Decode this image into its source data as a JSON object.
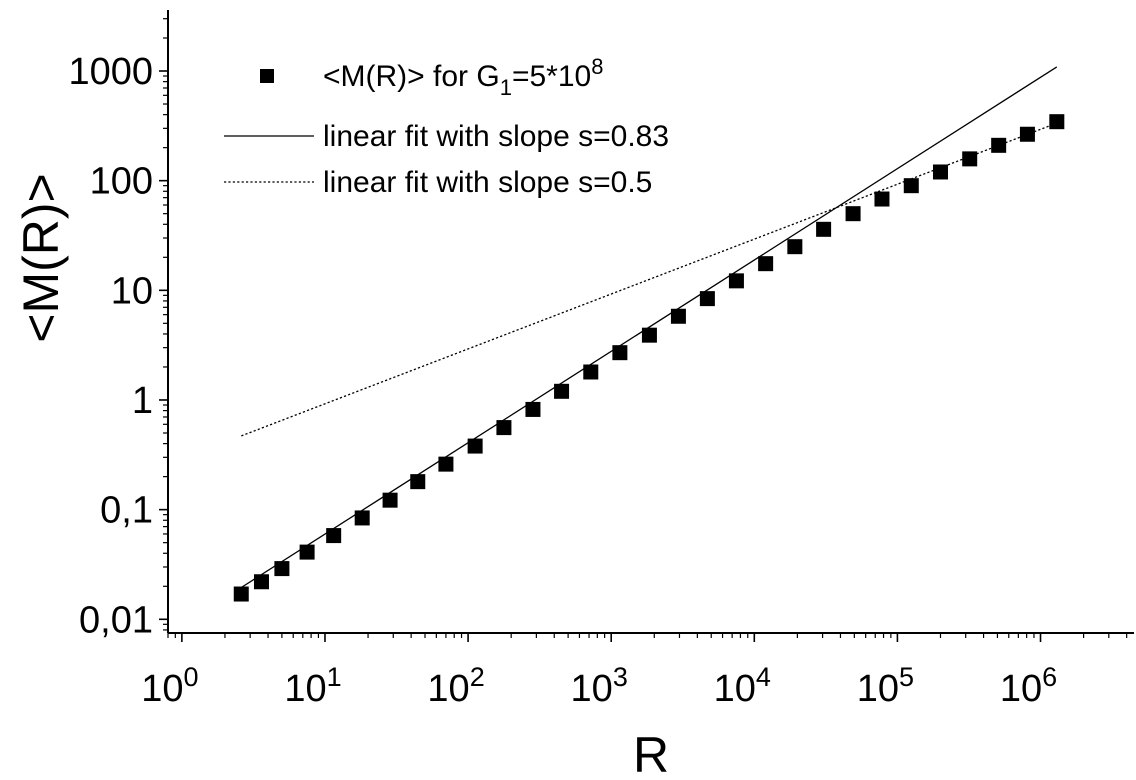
{
  "chart_data": {
    "type": "scatter",
    "title": "",
    "xlabel": "R",
    "ylabel": "<M(R)>",
    "xscale": "log",
    "yscale": "log",
    "xlim": [
      0.8,
      4500000
    ],
    "ylim": [
      0.0075,
      3600
    ],
    "x_ticks": [
      {
        "value": 1,
        "base": "10",
        "exp": "0"
      },
      {
        "value": 10,
        "base": "10",
        "exp": "1"
      },
      {
        "value": 100,
        "base": "10",
        "exp": "2"
      },
      {
        "value": 1000,
        "base": "10",
        "exp": "3"
      },
      {
        "value": 10000,
        "base": "10",
        "exp": "4"
      },
      {
        "value": 100000,
        "base": "10",
        "exp": "5"
      },
      {
        "value": 1000000,
        "base": "10",
        "exp": "6"
      }
    ],
    "y_ticks": [
      {
        "value": 0.01,
        "label": "0,01"
      },
      {
        "value": 0.1,
        "label": "0,1"
      },
      {
        "value": 1,
        "label": "1"
      },
      {
        "value": 10,
        "label": "10"
      },
      {
        "value": 100,
        "label": "100"
      },
      {
        "value": 1000,
        "label": "1000"
      }
    ],
    "grid": false,
    "legend_position": "top-left",
    "series": [
      {
        "name": "<M(R)> for G1=5*10^8",
        "legend": {
          "main": "<M(R)> for G",
          "sub": "1",
          "mid": "=5*10",
          "sup": "8"
        },
        "kind": "markers",
        "x": [
          2.6,
          3.6,
          5.0,
          7.5,
          11.5,
          18.2,
          28.5,
          44.5,
          70,
          112,
          178,
          284,
          450,
          720,
          1150,
          1850,
          2950,
          4700,
          7500,
          12000,
          19200,
          30500,
          49000,
          78000,
          125000,
          200000,
          320000,
          510000,
          810000,
          1300000
        ],
        "y": [
          0.017,
          0.022,
          0.029,
          0.041,
          0.058,
          0.084,
          0.122,
          0.18,
          0.26,
          0.38,
          0.56,
          0.82,
          1.2,
          1.8,
          2.7,
          3.9,
          5.8,
          8.4,
          12.2,
          17.5,
          25,
          36,
          50,
          68,
          90,
          120,
          158,
          210,
          265,
          345
        ]
      },
      {
        "name": "linear fit with slope s=0.83",
        "kind": "line",
        "style": "solid",
        "x": [
          2.6,
          1300000
        ],
        "y": [
          0.0195,
          1090
        ]
      },
      {
        "name": "linear fit with slope s=0.5",
        "kind": "line",
        "style": "dotted",
        "x": [
          2.6,
          1300000
        ],
        "y": [
          0.47,
          335
        ]
      }
    ]
  }
}
